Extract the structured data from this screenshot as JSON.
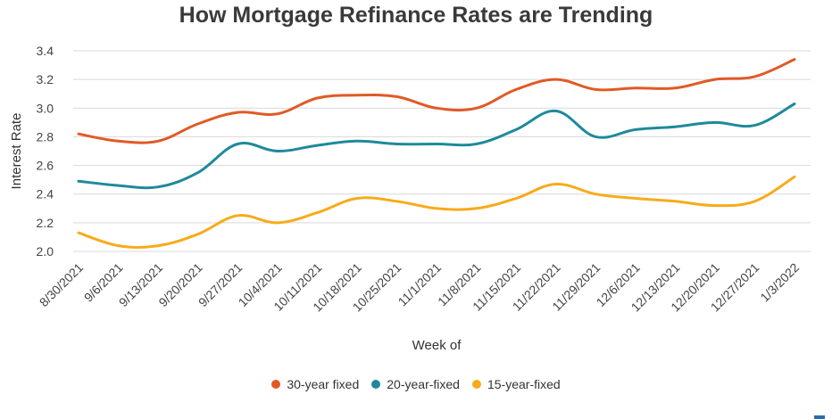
{
  "chart_data": {
    "type": "line",
    "title": "How Mortgage Refinance Rates are Trending",
    "xlabel": "Week of",
    "ylabel": "Interest Rate",
    "ylim": [
      2.0,
      3.4
    ],
    "yticks": [
      "2.0",
      "2.2",
      "2.4",
      "2.6",
      "2.8",
      "3.0",
      "3.2",
      "3.4"
    ],
    "grid": true,
    "legend_position": "bottom",
    "categories": [
      "8/30/2021",
      "9/6/2021",
      "9/13/2021",
      "9/20/2021",
      "9/27/2021",
      "10/4/2021",
      "10/11/2021",
      "10/18/2021",
      "10/25/2021",
      "11/1/2021",
      "11/8/2021",
      "11/15/2021",
      "11/22/2021",
      "11/29/2021",
      "12/6/2021",
      "12/13/2021",
      "12/20/2021",
      "12/27/2021",
      "1/3/2022"
    ],
    "series": [
      {
        "name": "30-year fixed",
        "color": "#e05a26",
        "values": [
          2.82,
          2.77,
          2.77,
          2.89,
          2.97,
          2.96,
          3.07,
          3.09,
          3.08,
          3.0,
          3.0,
          3.13,
          3.2,
          3.13,
          3.14,
          3.14,
          3.2,
          3.22,
          3.34
        ]
      },
      {
        "name": "20-year-fixed",
        "color": "#1e8a9a",
        "values": [
          2.49,
          2.46,
          2.45,
          2.55,
          2.75,
          2.7,
          2.74,
          2.77,
          2.75,
          2.75,
          2.75,
          2.85,
          2.98,
          2.8,
          2.85,
          2.87,
          2.9,
          2.88,
          3.03
        ]
      },
      {
        "name": "15-year-fixed",
        "color": "#f7ab1a",
        "values": [
          2.13,
          2.04,
          2.04,
          2.12,
          2.25,
          2.2,
          2.27,
          2.37,
          2.35,
          2.3,
          2.3,
          2.37,
          2.47,
          2.4,
          2.37,
          2.35,
          2.32,
          2.35,
          2.52
        ]
      }
    ]
  }
}
